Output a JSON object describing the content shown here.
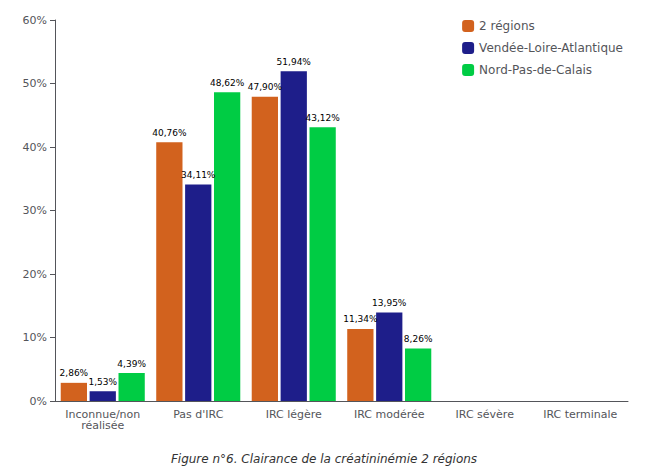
{
  "chart_data": {
    "type": "bar",
    "caption": "Figure n°6. Clairance de la créatininémie 2 régions",
    "categories": [
      "Inconnue/non\nréalisée",
      "Pas d'IRC",
      "IRC légère",
      "IRC modérée",
      "IRC sévère",
      "IRC terminale"
    ],
    "series": [
      {
        "name": "2 régions",
        "color": "#D2621E",
        "values": [
          2.86,
          40.76,
          47.9,
          11.34,
          0.0,
          0.0
        ],
        "value_labels": [
          "2,86%",
          "40,76%",
          "47,90%",
          "11,34%",
          null,
          null
        ]
      },
      {
        "name": "Vendée-Loire-Atlantique",
        "color": "#1E1E8A",
        "values": [
          1.53,
          34.11,
          51.94,
          13.95,
          0.0,
          0.0
        ],
        "value_labels": [
          "1,53%",
          "34,11%",
          "51,94%",
          "13,95%",
          null,
          null
        ]
      },
      {
        "name": "Nord-Pas-de-Calais",
        "color": "#00CC44",
        "values": [
          4.39,
          48.62,
          43.12,
          8.26,
          0.0,
          0.0
        ],
        "value_labels": [
          "4,39%",
          "48,62%",
          "43,12%",
          "8,26%",
          null,
          null
        ]
      }
    ],
    "ylim": [
      0,
      60
    ],
    "yticks": [
      {
        "value": 0,
        "label": "0%"
      },
      {
        "value": 10,
        "label": "10%"
      },
      {
        "value": 20,
        "label": "20%"
      },
      {
        "value": 30,
        "label": "30%"
      },
      {
        "value": 40,
        "label": "40%"
      },
      {
        "value": 50,
        "label": "50%"
      },
      {
        "value": 60,
        "label": "60%"
      }
    ],
    "grid": false,
    "legend": "upper right",
    "data_labels": true
  }
}
